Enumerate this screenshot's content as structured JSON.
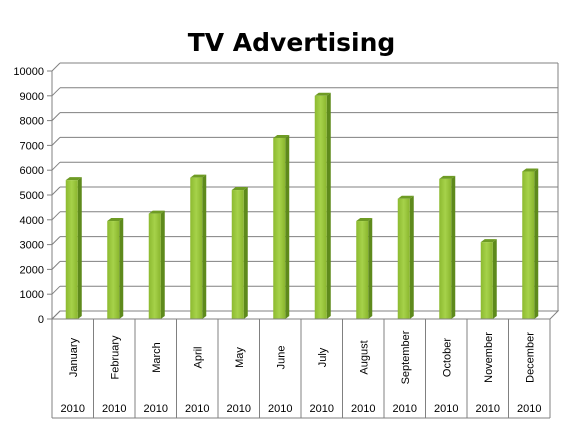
{
  "chart_data": {
    "type": "bar",
    "title": "TV Advertising",
    "categories": [
      "January",
      "February",
      "March",
      "April",
      "May",
      "June",
      "July",
      "August",
      "September",
      "October",
      "November",
      "December"
    ],
    "year_labels": [
      "2010",
      "2010",
      "2010",
      "2010",
      "2010",
      "2010",
      "2010",
      "2010",
      "2010",
      "2010",
      "2010",
      "2010"
    ],
    "values": [
      5600,
      3950,
      4250,
      5700,
      5200,
      7300,
      9000,
      3950,
      4850,
      5650,
      3100,
      5950
    ],
    "xlabel": "",
    "ylabel": "",
    "ylim": [
      0,
      10000
    ],
    "yticks": [
      "0",
      "1000",
      "2000",
      "3000",
      "4000",
      "5000",
      "6000",
      "7000",
      "8000",
      "9000",
      "10000"
    ],
    "grid": true,
    "legend": "none",
    "bar_color": "#9BC53D"
  }
}
